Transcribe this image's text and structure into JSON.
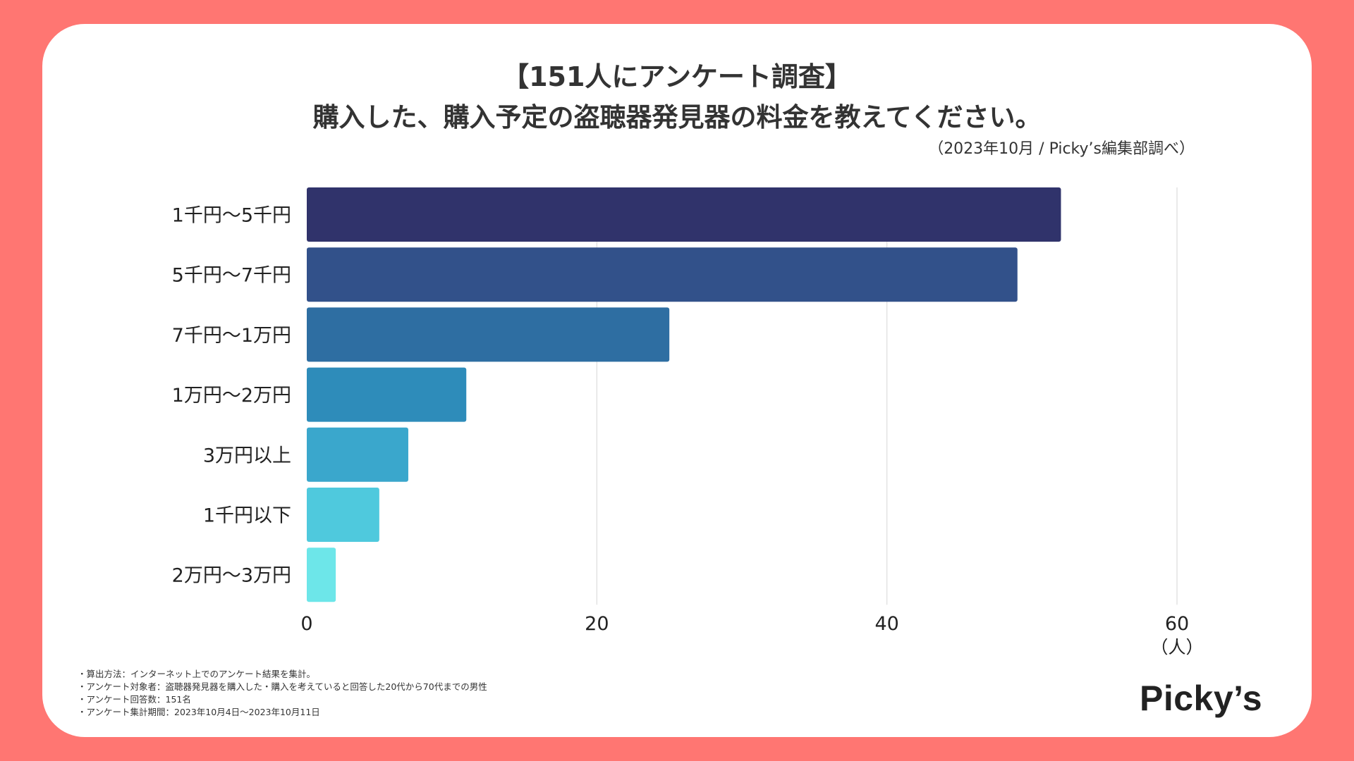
{
  "header": {
    "title_line1": "【151人にアンケート調査】",
    "title_line2": "購入した、購入予定の盗聴器発見器の料金を教えてください。",
    "source": "（2023年10月 / Picky’s編集部調べ）"
  },
  "chart_data": {
    "type": "bar",
    "orientation": "horizontal",
    "title": "購入した、購入予定の盗聴器発見器の料金を教えてください。",
    "categories": [
      "1千円〜5千円",
      "5千円〜7千円",
      "7千円〜1万円",
      "1万円〜2万円",
      "3万円以上",
      "1千円以下",
      "2万円〜3万円"
    ],
    "values": [
      52,
      49,
      25,
      11,
      7,
      5,
      2
    ],
    "colors": [
      "#30336b",
      "#32518a",
      "#2e6ea2",
      "#2e8cba",
      "#3aa7cc",
      "#4fc9dd",
      "#6de6e9"
    ],
    "xlim": [
      0,
      60
    ],
    "xticks": [
      0,
      20,
      40,
      60
    ],
    "xunit": "（人）",
    "grid": true
  },
  "notes": [
    "・算出方法：インターネット上でのアンケート結果を集計。",
    "・アンケート対象者：盗聴器発見器を購入した・購入を考えていると回答した20代から70代までの男性",
    "・アンケート回答数：151名",
    "・アンケート集計期間：2023年10月4日〜2023年10月11日"
  ],
  "logo": "Picky’s"
}
